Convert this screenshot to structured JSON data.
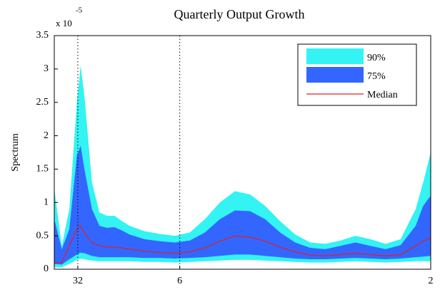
{
  "chart_data": {
    "type": "band",
    "title": "Quarterly Output Growth",
    "y_label": "Spectrum",
    "y_multiplier": {
      "base": "x 10",
      "exponent": "-5"
    },
    "x": [
      0,
      0.01,
      0.02,
      0.03,
      0.035,
      0.04,
      0.05,
      0.06,
      0.07,
      0.08,
      0.09,
      0.1,
      0.12,
      0.14,
      0.16,
      0.18,
      0.2,
      0.22,
      0.24,
      0.26,
      0.28,
      0.3,
      0.32,
      0.34,
      0.36,
      0.38,
      0.4,
      0.42,
      0.44,
      0.46,
      0.48,
      0.49,
      0.5
    ],
    "series": [
      {
        "name": "90%",
        "color": "#33f3f3",
        "upper": [
          1.2,
          0.35,
          0.9,
          2.5,
          3.05,
          2.6,
          1.3,
          0.85,
          0.8,
          0.8,
          0.72,
          0.65,
          0.57,
          0.53,
          0.5,
          0.55,
          0.75,
          1.0,
          1.17,
          1.12,
          0.95,
          0.72,
          0.52,
          0.4,
          0.38,
          0.43,
          0.5,
          0.45,
          0.38,
          0.45,
          0.9,
          1.3,
          1.75
        ],
        "lower": [
          0.03,
          0.03,
          0.08,
          0.14,
          0.16,
          0.15,
          0.13,
          0.12,
          0.12,
          0.12,
          0.12,
          0.12,
          0.11,
          0.11,
          0.1,
          0.11,
          0.12,
          0.13,
          0.14,
          0.14,
          0.13,
          0.12,
          0.11,
          0.1,
          0.1,
          0.11,
          0.12,
          0.11,
          0.1,
          0.11,
          0.12,
          0.12,
          0.12
        ]
      },
      {
        "name": "75%",
        "color": "#3366ff",
        "upper": [
          0.75,
          0.3,
          0.6,
          1.7,
          1.85,
          1.5,
          0.9,
          0.65,
          0.62,
          0.63,
          0.58,
          0.52,
          0.45,
          0.42,
          0.4,
          0.43,
          0.55,
          0.75,
          0.88,
          0.87,
          0.75,
          0.55,
          0.4,
          0.32,
          0.3,
          0.35,
          0.4,
          0.35,
          0.3,
          0.36,
          0.65,
          0.95,
          1.1
        ],
        "lower": [
          0.08,
          0.07,
          0.15,
          0.22,
          0.25,
          0.24,
          0.2,
          0.18,
          0.18,
          0.18,
          0.18,
          0.18,
          0.17,
          0.17,
          0.16,
          0.17,
          0.18,
          0.2,
          0.22,
          0.22,
          0.2,
          0.18,
          0.16,
          0.15,
          0.15,
          0.16,
          0.17,
          0.16,
          0.15,
          0.16,
          0.18,
          0.19,
          0.2
        ]
      },
      {
        "name": "Median",
        "color": "#e02020",
        "values": [
          0.1,
          0.1,
          0.35,
          0.6,
          0.65,
          0.55,
          0.4,
          0.35,
          0.33,
          0.33,
          0.32,
          0.3,
          0.27,
          0.25,
          0.24,
          0.26,
          0.32,
          0.42,
          0.5,
          0.48,
          0.42,
          0.33,
          0.26,
          0.21,
          0.2,
          0.22,
          0.24,
          0.22,
          0.2,
          0.22,
          0.35,
          0.42,
          0.47
        ]
      }
    ],
    "xlim": [
      0,
      0.5
    ],
    "xticks": [
      {
        "value": 0.03125,
        "label": "32"
      },
      {
        "value": 0.16667,
        "label": "6"
      },
      {
        "value": 0.5,
        "label": "2"
      }
    ],
    "ylim": [
      0,
      3.5
    ],
    "yticks": [
      0,
      0.5,
      1,
      1.5,
      2,
      2.5,
      3,
      3.5
    ],
    "grid": true,
    "legend": "top-right"
  }
}
